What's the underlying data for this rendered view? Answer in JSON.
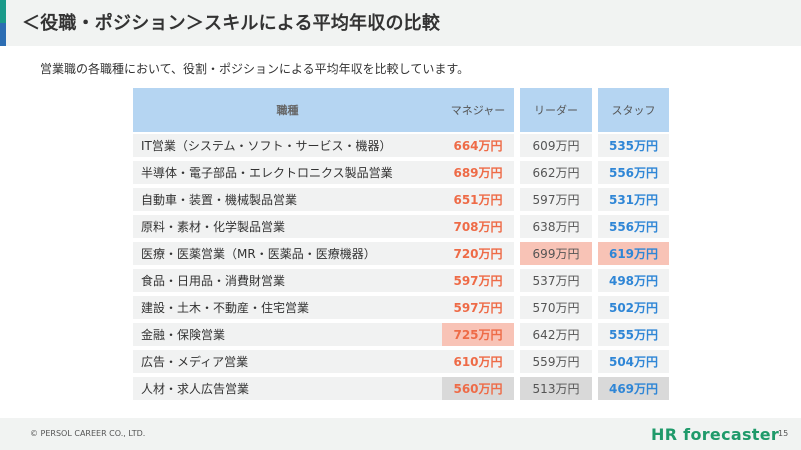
{
  "header": {
    "title": "＜役職・ポジション＞スキルによる平均年収の比較"
  },
  "subtitle": "営業職の各職種において、役割・ポジションによる平均年収を比較しています。",
  "table": {
    "columns": [
      "職種",
      "マネジャー",
      "リーダー",
      "スタッフ"
    ],
    "rows": [
      {
        "job": "IT営業（システム・ソフト・サービス・機器）",
        "manager": "664万円",
        "leader": "609万円",
        "staff": "535万円"
      },
      {
        "job": "半導体・電子部品・エレクトロニクス製品営業",
        "manager": "689万円",
        "leader": "662万円",
        "staff": "556万円"
      },
      {
        "job": "自動車・装置・機械製品営業",
        "manager": "651万円",
        "leader": "597万円",
        "staff": "531万円"
      },
      {
        "job": "原料・素材・化学製品営業",
        "manager": "708万円",
        "leader": "638万円",
        "staff": "556万円"
      },
      {
        "job": "医療・医薬営業（MR・医薬品・医療機器）",
        "manager": "720万円",
        "leader": "699万円",
        "staff": "619万円"
      },
      {
        "job": "食品・日用品・消費財営業",
        "manager": "597万円",
        "leader": "537万円",
        "staff": "498万円"
      },
      {
        "job": "建設・土木・不動産・住宅営業",
        "manager": "597万円",
        "leader": "570万円",
        "staff": "502万円"
      },
      {
        "job": "金融・保険営業",
        "manager": "725万円",
        "leader": "642万円",
        "staff": "555万円"
      },
      {
        "job": "広告・メディア営業",
        "manager": "610万円",
        "leader": "559万円",
        "staff": "504万円"
      },
      {
        "job": "人材・求人広告営業",
        "manager": "560万円",
        "leader": "513万円",
        "staff": "469万円"
      }
    ]
  },
  "footer": {
    "copyright": "© PERSOL CAREER CO., LTD.",
    "logo": "HR forecaster",
    "page": "15"
  },
  "colors": {
    "header_bg": "#b5d5f2",
    "manager_text": "#ee6b47",
    "staff_text": "#2f86d6",
    "max_highlight": "#f8c3b6",
    "min_highlight": "#d9d9d9",
    "logo": "#1f9a6a"
  }
}
